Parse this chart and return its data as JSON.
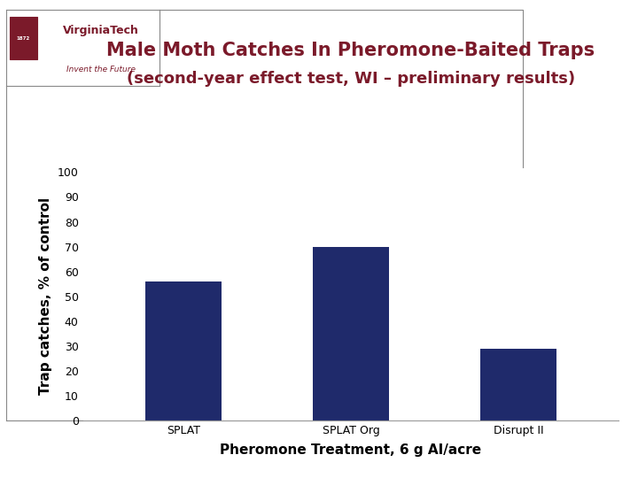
{
  "title_line1": "Male Moth Catches In Pheromone-Baited Traps",
  "title_line2": "(second-year effect test, WI – preliminary results)",
  "categories": [
    "SPLAT",
    "SPLAT Org",
    "Disrupt II"
  ],
  "values": [
    56,
    70,
    29
  ],
  "bar_color": "#1F2A6B",
  "ylabel": "Trap catches, % of control",
  "xlabel": "Pheromone Treatment, 6 g AI/acre",
  "ylim": [
    0,
    100
  ],
  "yticks": [
    0,
    10,
    20,
    30,
    40,
    50,
    60,
    70,
    80,
    90,
    100
  ],
  "title_color": "#7B1A2A",
  "xlabel_color": "#000000",
  "ylabel_color": "#000000",
  "bg_color": "#FFFFFF",
  "title_fontsize": 15,
  "subtitle_fontsize": 13,
  "axis_label_fontsize": 11,
  "tick_fontsize": 9,
  "bar_width": 0.45,
  "logo_text1": "VirginiaTech",
  "logo_text2": "Invent the Future",
  "logo_border_color": "#888888"
}
